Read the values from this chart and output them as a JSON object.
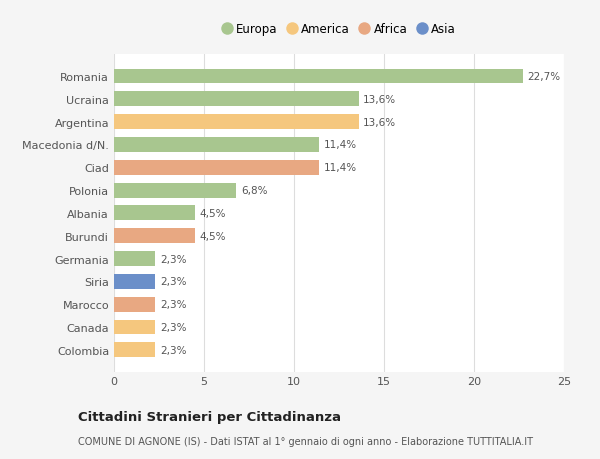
{
  "categories": [
    "Romania",
    "Ucraina",
    "Argentina",
    "Macedonia d/N.",
    "Ciad",
    "Polonia",
    "Albania",
    "Burundi",
    "Germania",
    "Siria",
    "Marocco",
    "Canada",
    "Colombia"
  ],
  "values": [
    22.7,
    13.6,
    13.6,
    11.4,
    11.4,
    6.8,
    4.5,
    4.5,
    2.3,
    2.3,
    2.3,
    2.3,
    2.3
  ],
  "labels": [
    "22,7%",
    "13,6%",
    "13,6%",
    "11,4%",
    "11,4%",
    "6,8%",
    "4,5%",
    "4,5%",
    "2,3%",
    "2,3%",
    "2,3%",
    "2,3%",
    "2,3%"
  ],
  "colors": [
    "#a8c68f",
    "#a8c68f",
    "#f5c77e",
    "#a8c68f",
    "#e8a882",
    "#a8c68f",
    "#a8c68f",
    "#e8a882",
    "#a8c68f",
    "#6b8fc9",
    "#e8a882",
    "#f5c77e",
    "#f5c77e"
  ],
  "legend": [
    {
      "label": "Europa",
      "color": "#a8c68f"
    },
    {
      "label": "America",
      "color": "#f5c77e"
    },
    {
      "label": "Africa",
      "color": "#e8a882"
    },
    {
      "label": "Asia",
      "color": "#6b8fc9"
    }
  ],
  "xlim": [
    0,
    25
  ],
  "xticks": [
    0,
    5,
    10,
    15,
    20,
    25
  ],
  "title": "Cittadini Stranieri per Cittadinanza",
  "subtitle": "COMUNE DI AGNONE (IS) - Dati ISTAT al 1° gennaio di ogni anno - Elaborazione TUTTITALIA.IT",
  "background_color": "#f5f5f5",
  "bar_background": "#ffffff",
  "grid_color": "#dddddd"
}
